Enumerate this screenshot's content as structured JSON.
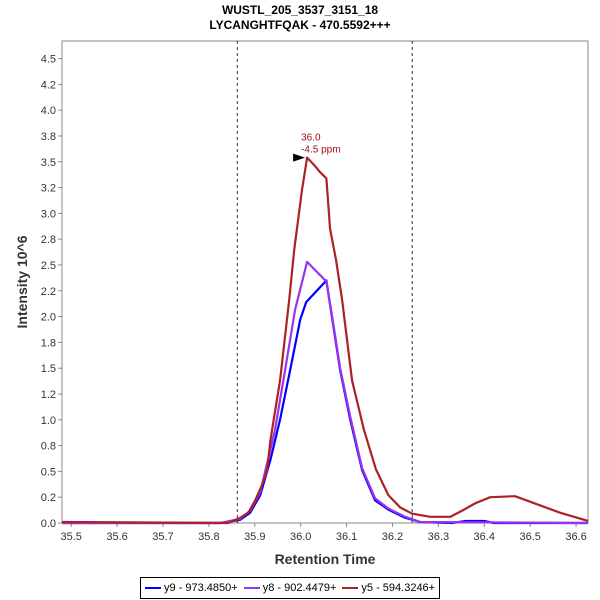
{
  "chart_data": {
    "type": "line",
    "title": "WUSTL_205_3537_3151_18",
    "subtitle": "LYCANGHTFQAK - 470.5592+++",
    "xlabel": "Retention Time",
    "ylabel": "Intensity 10^6",
    "xlim": [
      35.48,
      36.626
    ],
    "ylim": [
      0,
      4.67
    ],
    "xticks": [
      "35.5",
      "35.6",
      "35.7",
      "35.8",
      "35.9",
      "36.0",
      "36.1",
      "36.2",
      "36.3",
      "36.4",
      "36.5",
      "36.6"
    ],
    "yticks": [
      "0.0",
      "0.2",
      "0.5",
      "0.8",
      "1.0",
      "1.2",
      "1.5",
      "1.8",
      "2.0",
      "2.2",
      "2.5",
      "2.8",
      "3.0",
      "3.2",
      "3.5",
      "3.8",
      "4.0",
      "4.2",
      "4.5"
    ],
    "ytick_values": [
      0,
      0.25,
      0.5,
      0.75,
      1,
      1.25,
      1.5,
      1.75,
      2,
      2.25,
      2.5,
      2.75,
      3,
      3.25,
      3.5,
      3.75,
      4,
      4.25,
      4.5
    ],
    "boundaries": [
      35.862,
      36.243
    ],
    "annotation": {
      "x": 36.014,
      "y": 3.54,
      "line1": "36.0",
      "line2": "-4.5 ppm",
      "color": "#a01010"
    },
    "legend_position": "bottom",
    "series": [
      {
        "name": "y9 - 973.4850+",
        "color": "#0000ff",
        "points": [
          [
            35.48,
            0
          ],
          [
            35.825,
            0
          ],
          [
            35.868,
            0.03
          ],
          [
            35.89,
            0.1
          ],
          [
            35.912,
            0.27
          ],
          [
            35.934,
            0.61
          ],
          [
            35.955,
            1.0
          ],
          [
            35.977,
            1.48
          ],
          [
            35.999,
            1.97
          ],
          [
            36.012,
            2.14
          ],
          [
            36.056,
            2.35
          ],
          [
            36.069,
            1.97
          ],
          [
            36.086,
            1.48
          ],
          [
            36.108,
            1.0
          ],
          [
            36.134,
            0.51
          ],
          [
            36.162,
            0.22
          ],
          [
            36.191,
            0.13
          ],
          [
            36.228,
            0.05
          ],
          [
            36.26,
            0.01
          ],
          [
            36.33,
            0.0
          ],
          [
            36.36,
            0.02
          ],
          [
            36.4,
            0.02
          ],
          [
            36.42,
            0.0
          ],
          [
            36.626,
            0
          ]
        ]
      },
      {
        "name": "y8 - 902.4479+",
        "color": "#9933ee",
        "points": [
          [
            35.48,
            0
          ],
          [
            35.825,
            0
          ],
          [
            35.868,
            0.04
          ],
          [
            35.89,
            0.12
          ],
          [
            35.912,
            0.3
          ],
          [
            35.944,
            0.9
          ],
          [
            35.966,
            1.48
          ],
          [
            35.988,
            2.07
          ],
          [
            36.014,
            2.53
          ],
          [
            36.056,
            2.34
          ],
          [
            36.069,
            1.99
          ],
          [
            36.086,
            1.5
          ],
          [
            36.108,
            1.03
          ],
          [
            36.134,
            0.53
          ],
          [
            36.162,
            0.24
          ],
          [
            36.191,
            0.14
          ],
          [
            36.228,
            0.06
          ],
          [
            36.26,
            0.01
          ],
          [
            36.626,
            0
          ]
        ]
      },
      {
        "name": "y5 - 594.3246+",
        "color": "#aa2222",
        "points": [
          [
            35.48,
            0.01
          ],
          [
            35.842,
            0
          ],
          [
            35.868,
            0.05
          ],
          [
            35.886,
            0.1
          ],
          [
            35.901,
            0.22
          ],
          [
            35.916,
            0.37
          ],
          [
            35.927,
            0.51
          ],
          [
            35.934,
            0.8
          ],
          [
            35.955,
            1.38
          ],
          [
            35.975,
            2.16
          ],
          [
            35.986,
            2.65
          ],
          [
            36.003,
            3.23
          ],
          [
            36.014,
            3.54
          ],
          [
            36.029,
            3.47
          ],
          [
            36.042,
            3.4
          ],
          [
            36.056,
            3.34
          ],
          [
            36.064,
            2.85
          ],
          [
            36.077,
            2.55
          ],
          [
            36.09,
            2.17
          ],
          [
            36.112,
            1.38
          ],
          [
            36.138,
            0.9
          ],
          [
            36.164,
            0.52
          ],
          [
            36.191,
            0.27
          ],
          [
            36.217,
            0.15
          ],
          [
            36.243,
            0.09
          ],
          [
            36.282,
            0.06
          ],
          [
            36.326,
            0.06
          ],
          [
            36.352,
            0.12
          ],
          [
            36.38,
            0.19
          ],
          [
            36.413,
            0.25
          ],
          [
            36.467,
            0.26
          ],
          [
            36.522,
            0.17
          ],
          [
            36.565,
            0.1
          ],
          [
            36.626,
            0.02
          ]
        ]
      }
    ]
  }
}
